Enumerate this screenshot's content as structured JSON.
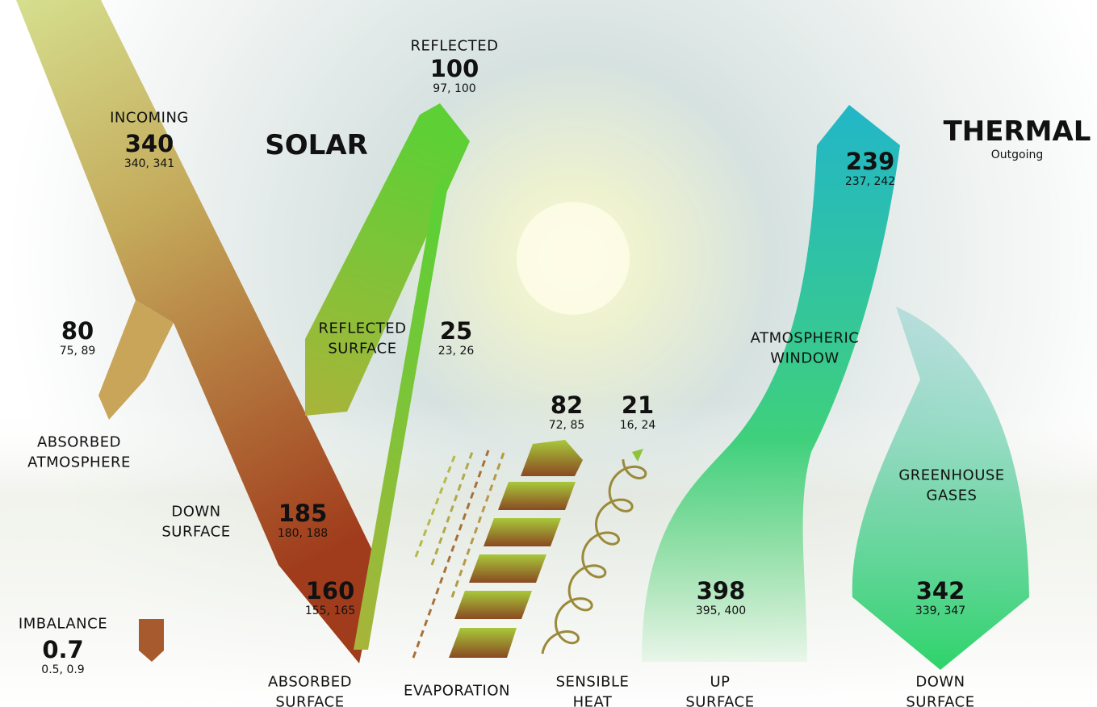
{
  "solar_title": "SOLAR",
  "thermal": {
    "title": "THERMAL",
    "subtitle": "Outgoing"
  },
  "flows": {
    "reflected": {
      "label": [
        "REFLECTED"
      ],
      "value": 100,
      "range": "97, 100"
    },
    "incoming": {
      "label": [
        "INCOMING"
      ],
      "value": 340,
      "range": "340, 341"
    },
    "outgoing_thermal": {
      "value": 239,
      "range": "237, 242"
    },
    "absorbed_atmosphere": {
      "label": [
        "ABSORBED",
        "ATMOSPHERE"
      ],
      "value": 80,
      "range": "75, 89"
    },
    "reflected_surface": {
      "label": [
        "REFLECTED",
        "SURFACE"
      ],
      "value": 25,
      "range": "23, 26"
    },
    "atmospheric_window": {
      "label": [
        "ATMOSPHERIC",
        "WINDOW"
      ]
    },
    "evaporation": {
      "label": [
        "EVAPORATION"
      ],
      "value": 82,
      "range": "72, 85"
    },
    "sensible_heat": {
      "label": [
        "SENSIBLE",
        "HEAT"
      ],
      "value": 21,
      "range": "16, 24"
    },
    "greenhouse_gases": {
      "label": [
        "GREENHOUSE",
        "GASES"
      ]
    },
    "down_surface_solar": {
      "label": [
        "DOWN",
        "SURFACE"
      ],
      "value": 185,
      "range": "180, 188"
    },
    "absorbed_surface": {
      "label": [
        "ABSORBED",
        "SURFACE"
      ],
      "value": 160,
      "range": "155, 165"
    },
    "up_surface": {
      "label": [
        "UP",
        "SURFACE"
      ],
      "value": 398,
      "range": "395, 400"
    },
    "down_surface_thermal": {
      "label": [
        "DOWN",
        "SURFACE"
      ],
      "value": 342,
      "range": "339, 347"
    },
    "imbalance": {
      "label": [
        "IMBALANCE"
      ],
      "value": 0.7,
      "range": "0.5, 0.9"
    }
  }
}
